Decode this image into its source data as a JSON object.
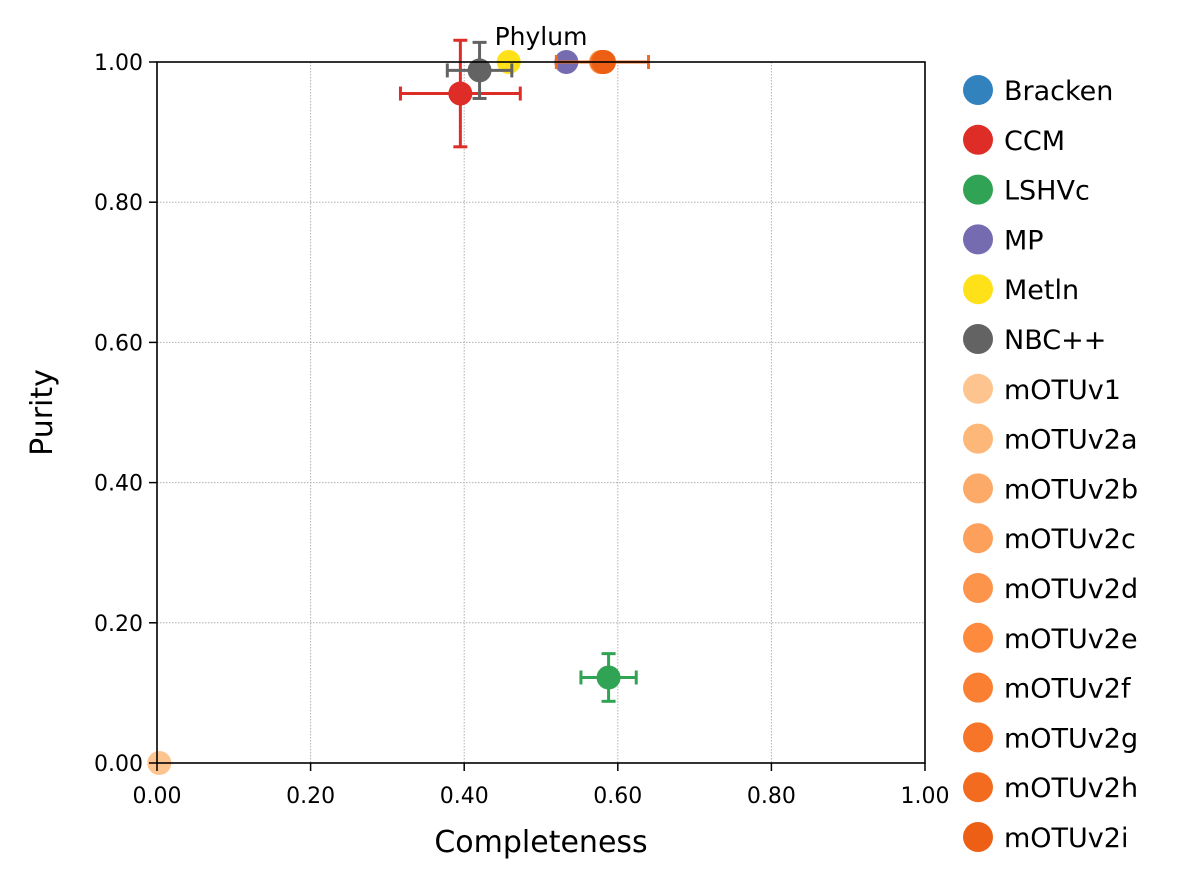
{
  "chart_data": {
    "type": "scatter",
    "title": "Phylum",
    "xlabel": "Completeness",
    "ylabel": "Purity",
    "xlim": [
      0,
      1
    ],
    "ylim": [
      0,
      1
    ],
    "x_ticks": [
      "0.00",
      "0.20",
      "0.40",
      "0.60",
      "0.80",
      "1.00"
    ],
    "y_ticks": [
      "0.00",
      "0.20",
      "0.40",
      "0.60",
      "0.80",
      "1.00"
    ],
    "grid": true,
    "legend_position": "outside-right",
    "series": [
      {
        "name": "Bracken",
        "color": "#3182bd",
        "x": 0.58,
        "y": 1.0
      },
      {
        "name": "CCM",
        "color": "#de2d26",
        "x": 0.395,
        "y": 0.955,
        "xerr": 0.078,
        "yerr": 0.076
      },
      {
        "name": "LSHVc",
        "color": "#31a354",
        "x": 0.588,
        "y": 0.122,
        "xerr": 0.036,
        "yerr": 0.034
      },
      {
        "name": "MP",
        "color": "#756bb1",
        "x": 0.533,
        "y": 1.0
      },
      {
        "name": "Metln",
        "color": "#ffe119",
        "x": 0.458,
        "y": 1.0
      },
      {
        "name": "NBC++",
        "color": "#636363",
        "x": 0.42,
        "y": 0.988,
        "xerr": 0.042,
        "yerr": 0.04
      },
      {
        "name": "mOTUv1",
        "color": "#fdc48f",
        "x": 0.003,
        "y": 0.0
      },
      {
        "name": "mOTUv2a",
        "color": "#fdb779",
        "x": 0.578,
        "y": 1.0
      },
      {
        "name": "mOTUv2b",
        "color": "#fdaa69",
        "x": 0.578,
        "y": 1.0
      },
      {
        "name": "mOTUv2c",
        "color": "#fda05b",
        "x": 0.579,
        "y": 1.0
      },
      {
        "name": "mOTUv2d",
        "color": "#fd944b",
        "x": 0.579,
        "y": 1.0
      },
      {
        "name": "mOTUv2e",
        "color": "#fd8a3d",
        "x": 0.58,
        "y": 1.0
      },
      {
        "name": "mOTUv2f",
        "color": "#fb7f32",
        "x": 0.58,
        "y": 1.0
      },
      {
        "name": "mOTUv2g",
        "color": "#f77528",
        "x": 0.58,
        "y": 1.0
      },
      {
        "name": "mOTUv2h",
        "color": "#f36b1e",
        "x": 0.58,
        "y": 1.0,
        "xerr": 0.06
      },
      {
        "name": "mOTUv2i",
        "color": "#ec5f14",
        "x": 0.582,
        "y": 1.0
      }
    ]
  }
}
